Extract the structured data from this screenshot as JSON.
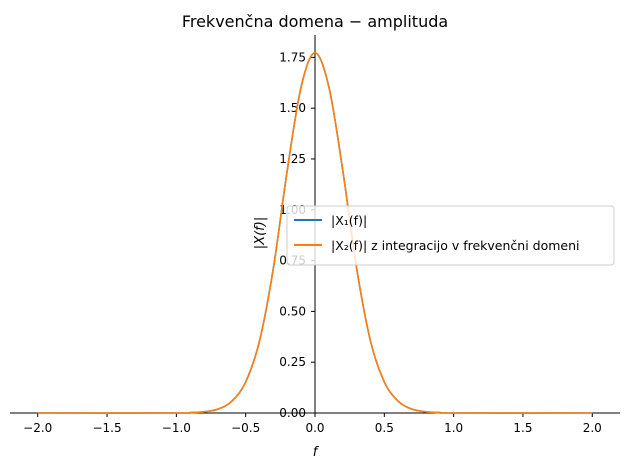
{
  "chart_data": {
    "type": "line",
    "title": "Frekvenčna domena − amplituda",
    "xlabel": "f",
    "ylabel": "|X(f)|",
    "xlim": [
      -2.2,
      2.2
    ],
    "ylim": [
      0.0,
      1.86
    ],
    "xticks": [
      -2.0,
      -1.5,
      -1.0,
      -0.5,
      0.0,
      0.5,
      1.0,
      1.5,
      2.0
    ],
    "xtick_labels": [
      "−2.0",
      "−1.5",
      "−1.0",
      "−0.5",
      "0.0",
      "0.5",
      "1.0",
      "1.5",
      "2.0"
    ],
    "yticks": [
      0.0,
      0.25,
      0.5,
      0.75,
      1.0,
      1.25,
      1.5,
      1.75
    ],
    "ytick_labels": [
      "0.00",
      "0.25",
      "0.50",
      "0.75",
      "1.00",
      "1.25",
      "1.50",
      "1.75"
    ],
    "grid": false,
    "legend_position": "center-right",
    "x": [
      -2.0,
      -1.0,
      -0.9,
      -0.8,
      -0.7,
      -0.6,
      -0.5,
      -0.4,
      -0.3,
      -0.2,
      -0.1,
      0.0,
      0.1,
      0.2,
      0.3,
      0.4,
      0.5,
      0.6,
      0.7,
      0.8,
      0.9,
      1.0,
      2.0
    ],
    "series": [
      {
        "name": "|X₁(f)|",
        "color": "#1f77b4",
        "values": [
          0.0,
          0.0,
          0.002,
          0.006,
          0.019,
          0.058,
          0.153,
          0.355,
          0.714,
          1.195,
          1.605,
          1.772,
          1.605,
          1.195,
          0.714,
          0.355,
          0.153,
          0.058,
          0.019,
          0.006,
          0.002,
          0.0,
          0.0
        ]
      },
      {
        "name": "|X₂(f)| z integracijo v frekvenčni domeni",
        "color": "#ff7f0e",
        "values": [
          0.0,
          0.0,
          0.002,
          0.006,
          0.019,
          0.058,
          0.153,
          0.355,
          0.714,
          1.195,
          1.605,
          1.772,
          1.605,
          1.195,
          0.714,
          0.355,
          0.153,
          0.058,
          0.019,
          0.006,
          0.002,
          0.0,
          0.0
        ]
      }
    ]
  }
}
